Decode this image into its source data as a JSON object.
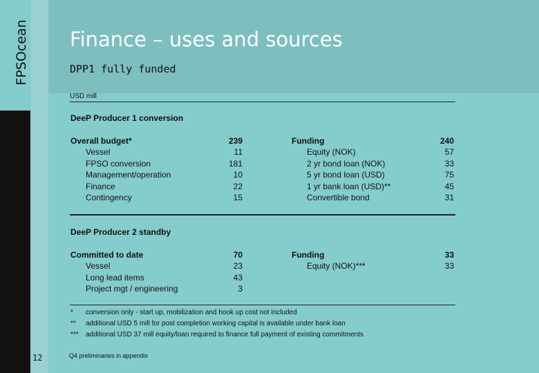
{
  "brand": {
    "logo_text": "FPSOcean"
  },
  "slide": {
    "title": "Finance – uses and sources",
    "subtitle": "DPP1 fully funded",
    "units": "USD mill",
    "page_number": "12",
    "footer_note": "Q4 preliminaries in appendix"
  },
  "section1": {
    "heading": "DeeP Producer 1 conversion",
    "uses_label": "Overall budget*",
    "uses_total": "239",
    "uses": [
      {
        "label": "Vessel",
        "value": "11"
      },
      {
        "label": "FPSO conversion",
        "value": "181"
      },
      {
        "label": "Management/operation",
        "value": "10"
      },
      {
        "label": "Finance",
        "value": "22"
      },
      {
        "label": "Contingency",
        "value": "15"
      }
    ],
    "sources_label": "Funding",
    "sources_total": "240",
    "sources": [
      {
        "label": "Equity (NOK)",
        "value": "57"
      },
      {
        "label": "2 yr bond loan (NOK)",
        "value": "33"
      },
      {
        "label": "5 yr bond loan (USD)",
        "value": "75"
      },
      {
        "label": "1 yr bank loan (USD)**",
        "value": "45"
      },
      {
        "label": "Convertible bond",
        "value": "31"
      }
    ]
  },
  "section2": {
    "heading": "DeeP Producer 2 standby",
    "uses_label": "Committed to date",
    "uses_total": "70",
    "uses": [
      {
        "label": "Vessel",
        "value": "23"
      },
      {
        "label": "Long lead items",
        "value": "43"
      },
      {
        "label": "Project mgt / engineering",
        "value": "3"
      }
    ],
    "sources_label": "Funding",
    "sources_total": "33",
    "sources": [
      {
        "label": "Equity (NOK)***",
        "value": "33"
      }
    ]
  },
  "footnotes": [
    {
      "mark": "*",
      "text": "conversion only - start up, mobilization and hook up cost not included"
    },
    {
      "mark": "**",
      "text": "additional USD 5 mill for post completion working capital is available under bank loan"
    },
    {
      "mark": "***",
      "text": "additional USD 37 mill equity/loan required to finance full payment of existing commitments"
    }
  ],
  "colors": {
    "background": "#85cccc",
    "top_band": "#7dbebf",
    "sidebar": "#111111",
    "title": "#ffffff"
  }
}
